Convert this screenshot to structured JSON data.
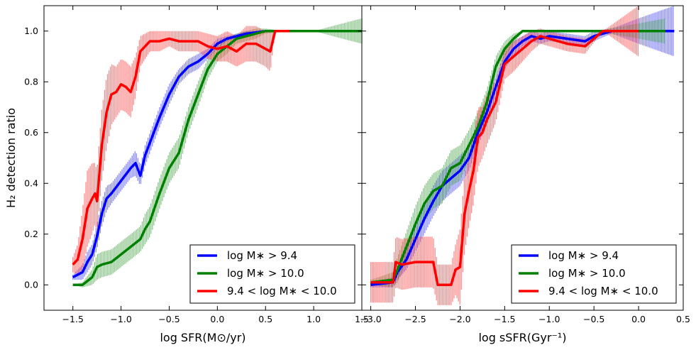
{
  "chart_data": [
    {
      "type": "line",
      "xlabel": "log SFR(M⊙/yr)",
      "ylabel": "H₂ detection ratio",
      "xlim": [
        -1.8,
        1.5
      ],
      "ylim": [
        -0.1,
        1.1
      ],
      "xticks": [
        -1.5,
        -1.0,
        -0.5,
        0.0,
        0.5,
        1.0,
        1.5
      ],
      "xtick_labels": [
        "−1.5",
        "−1.0",
        "−0.5",
        "0.0",
        "0.5",
        "1.0",
        "1.5"
      ],
      "yticks": [
        0.0,
        0.2,
        0.4,
        0.6,
        0.8,
        1.0
      ],
      "ytick_labels": [
        "0.0",
        "0.2",
        "0.4",
        "0.6",
        "0.8",
        "1.0"
      ],
      "legend_position": "lower-right",
      "series": [
        {
          "name": "log M∗ > 9.4",
          "color": "#0000ff",
          "x": [
            -1.5,
            -1.45,
            -1.4,
            -1.35,
            -1.3,
            -1.25,
            -1.2,
            -1.15,
            -1.1,
            -1.0,
            -0.9,
            -0.85,
            -0.8,
            -0.75,
            -0.7,
            -0.6,
            -0.5,
            -0.4,
            -0.3,
            -0.2,
            -0.1,
            0.0,
            0.1,
            0.2,
            0.3,
            0.5
          ],
          "y": [
            0.03,
            0.04,
            0.05,
            0.09,
            0.12,
            0.19,
            0.28,
            0.34,
            0.36,
            0.41,
            0.46,
            0.48,
            0.43,
            0.51,
            0.56,
            0.66,
            0.75,
            0.82,
            0.86,
            0.88,
            0.91,
            0.95,
            0.97,
            0.98,
            0.99,
            1.0
          ],
          "err": [
            0.01,
            0.02,
            0.03,
            0.04,
            0.04,
            0.05,
            0.05,
            0.05,
            0.04,
            0.04,
            0.04,
            0.05,
            0.04,
            0.04,
            0.04,
            0.04,
            0.04,
            0.03,
            0.03,
            0.03,
            0.02,
            0.02,
            0.01,
            0.01,
            0.01,
            0.0
          ]
        },
        {
          "name": "log M∗ > 10.0",
          "color": "#008000",
          "x": [
            -1.5,
            -1.4,
            -1.3,
            -1.25,
            -1.2,
            -1.1,
            -1.0,
            -0.9,
            -0.8,
            -0.75,
            -0.7,
            -0.6,
            -0.5,
            -0.4,
            -0.3,
            -0.2,
            -0.1,
            0.0,
            0.1,
            0.2,
            0.3,
            0.4,
            0.5,
            0.7,
            1.0,
            1.5
          ],
          "y": [
            0.0,
            0.0,
            0.03,
            0.07,
            0.08,
            0.09,
            0.12,
            0.15,
            0.18,
            0.22,
            0.25,
            0.36,
            0.46,
            0.52,
            0.65,
            0.75,
            0.85,
            0.91,
            0.94,
            0.97,
            0.98,
            0.99,
            1.0,
            1.0,
            1.0,
            1.0
          ],
          "err": [
            0.0,
            0.01,
            0.03,
            0.05,
            0.05,
            0.05,
            0.05,
            0.05,
            0.05,
            0.06,
            0.06,
            0.06,
            0.06,
            0.06,
            0.05,
            0.05,
            0.04,
            0.03,
            0.03,
            0.02,
            0.02,
            0.02,
            0.01,
            0.0,
            0.0,
            0.05
          ]
        },
        {
          "name": "9.4 < log M∗ < 10.0",
          "color": "#ff0000",
          "x": [
            -1.5,
            -1.45,
            -1.4,
            -1.35,
            -1.3,
            -1.27,
            -1.25,
            -1.2,
            -1.15,
            -1.1,
            -1.05,
            -1.0,
            -0.95,
            -0.9,
            -0.85,
            -0.8,
            -0.7,
            -0.6,
            -0.5,
            -0.4,
            -0.3,
            -0.2,
            -0.1,
            0.0,
            0.1,
            0.2,
            0.3,
            0.4,
            0.5,
            0.55,
            0.6,
            0.75
          ],
          "y": [
            0.08,
            0.1,
            0.18,
            0.3,
            0.34,
            0.36,
            0.33,
            0.55,
            0.68,
            0.75,
            0.76,
            0.79,
            0.78,
            0.76,
            0.82,
            0.92,
            0.96,
            0.96,
            0.97,
            0.96,
            0.96,
            0.96,
            0.94,
            0.93,
            0.94,
            0.92,
            0.95,
            0.95,
            0.93,
            0.92,
            1.0,
            1.0
          ],
          "err": [
            0.03,
            0.06,
            0.12,
            0.15,
            0.14,
            0.12,
            0.12,
            0.14,
            0.14,
            0.12,
            0.1,
            0.1,
            0.1,
            0.1,
            0.08,
            0.06,
            0.04,
            0.04,
            0.03,
            0.04,
            0.04,
            0.04,
            0.05,
            0.05,
            0.06,
            0.06,
            0.07,
            0.07,
            0.07,
            0.08,
            0.0,
            0.0
          ]
        }
      ]
    },
    {
      "type": "line",
      "xlabel": "log sSFR(Gyr⁻¹)",
      "ylabel": "",
      "xlim": [
        -3.1,
        0.5
      ],
      "ylim": [
        -0.1,
        1.1
      ],
      "xticks": [
        -3.0,
        -2.5,
        -2.0,
        -1.5,
        -1.0,
        -0.5,
        0.0,
        0.5
      ],
      "xtick_labels": [
        "−3.0",
        "−2.5",
        "−2.0",
        "−1.5",
        "−1.0",
        "−0.5",
        "0.0",
        "0.5"
      ],
      "yticks": [
        0.0,
        0.2,
        0.4,
        0.6,
        0.8,
        1.0
      ],
      "legend_position": "lower-right",
      "series": [
        {
          "name": "log M∗ > 9.4",
          "color": "#0000ff",
          "x": [
            -3.0,
            -2.75,
            -2.7,
            -2.6,
            -2.5,
            -2.4,
            -2.3,
            -2.2,
            -2.1,
            -2.0,
            -1.9,
            -1.8,
            -1.7,
            -1.6,
            -1.5,
            -1.4,
            -1.3,
            -1.2,
            -1.1,
            -1.0,
            -0.8,
            -0.6,
            -0.5,
            -0.3,
            0.0,
            0.4
          ],
          "y": [
            0.0,
            0.01,
            0.05,
            0.1,
            0.18,
            0.26,
            0.33,
            0.39,
            0.42,
            0.45,
            0.5,
            0.6,
            0.68,
            0.78,
            0.88,
            0.93,
            0.96,
            0.98,
            0.97,
            0.98,
            0.97,
            0.96,
            0.98,
            1.0,
            1.0,
            1.0
          ],
          "err": [
            0.01,
            0.02,
            0.03,
            0.04,
            0.05,
            0.06,
            0.06,
            0.06,
            0.06,
            0.06,
            0.05,
            0.05,
            0.05,
            0.04,
            0.03,
            0.03,
            0.02,
            0.02,
            0.02,
            0.02,
            0.02,
            0.02,
            0.02,
            0.01,
            0.05,
            0.1
          ]
        },
        {
          "name": "log M∗ > 10.0",
          "color": "#008000",
          "x": [
            -3.0,
            -2.75,
            -2.7,
            -2.6,
            -2.5,
            -2.4,
            -2.3,
            -2.2,
            -2.1,
            -2.0,
            -1.9,
            -1.8,
            -1.7,
            -1.6,
            -1.5,
            -1.4,
            -1.3,
            -1.2,
            -1.1,
            -1.0,
            -0.5,
            0.0,
            0.3
          ],
          "y": [
            0.01,
            0.02,
            0.06,
            0.15,
            0.24,
            0.32,
            0.37,
            0.39,
            0.46,
            0.48,
            0.55,
            0.62,
            0.72,
            0.86,
            0.93,
            0.97,
            1.0,
            1.0,
            1.0,
            1.0,
            1.0,
            1.0,
            1.0
          ],
          "err": [
            0.01,
            0.03,
            0.05,
            0.06,
            0.07,
            0.07,
            0.07,
            0.07,
            0.07,
            0.07,
            0.06,
            0.06,
            0.05,
            0.04,
            0.03,
            0.02,
            0.0,
            0.0,
            0.0,
            0.0,
            0.0,
            0.03,
            0.05
          ]
        },
        {
          "name": "9.4 < log M∗ < 10.0",
          "color": "#ff0000",
          "x": [
            -3.0,
            -2.75,
            -2.72,
            -2.65,
            -2.5,
            -2.45,
            -2.3,
            -2.25,
            -2.2,
            -2.1,
            -2.05,
            -2.0,
            -1.95,
            -1.9,
            -1.85,
            -1.8,
            -1.75,
            -1.7,
            -1.6,
            -1.5,
            -1.4,
            -1.3,
            -1.2,
            -1.1,
            -1.0,
            -0.9,
            -0.8,
            -0.6,
            -0.4,
            -0.2,
            0.0
          ],
          "y": [
            0.01,
            0.01,
            0.09,
            0.08,
            0.09,
            0.09,
            0.09,
            0.0,
            0.0,
            0.0,
            0.06,
            0.07,
            0.28,
            0.37,
            0.45,
            0.58,
            0.6,
            0.65,
            0.72,
            0.87,
            0.9,
            0.93,
            0.96,
            0.98,
            0.97,
            0.96,
            0.95,
            0.94,
            1.0,
            1.0,
            1.0
          ],
          "err": [
            0.08,
            0.08,
            0.1,
            0.1,
            0.1,
            0.1,
            0.1,
            0.08,
            0.08,
            0.08,
            0.1,
            0.15,
            0.15,
            0.14,
            0.13,
            0.12,
            0.1,
            0.1,
            0.08,
            0.06,
            0.06,
            0.05,
            0.04,
            0.03,
            0.03,
            0.03,
            0.03,
            0.03,
            0.0,
            0.05,
            0.1
          ]
        }
      ]
    }
  ]
}
